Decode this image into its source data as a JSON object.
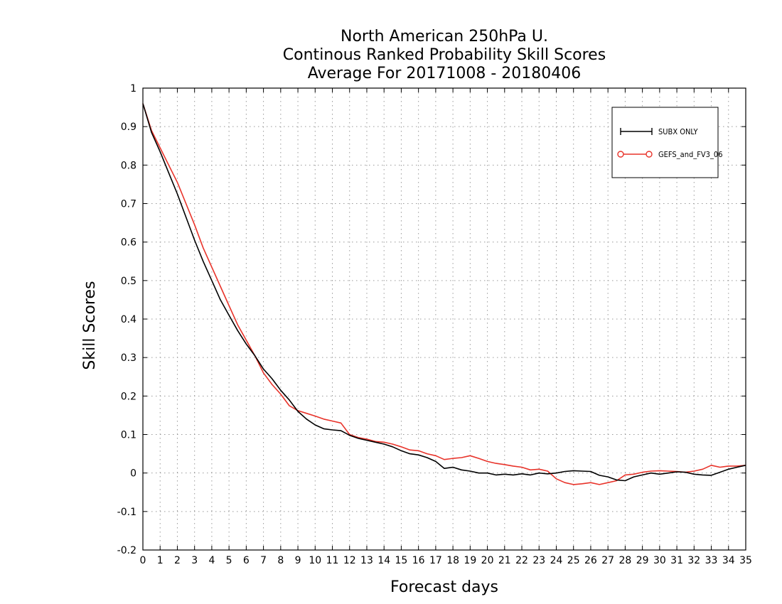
{
  "chart_data": {
    "type": "line",
    "title": [
      "North American 250hPa U.",
      "Continous Ranked Probability Skill Scores",
      "Average For 20171008 - 20180406"
    ],
    "xlabel": "Forecast days",
    "ylabel": "Skill Scores",
    "xlim": [
      0,
      35
    ],
    "ylim": [
      -0.2,
      1
    ],
    "xticks": [
      0,
      1,
      2,
      3,
      4,
      5,
      6,
      7,
      8,
      9,
      10,
      11,
      12,
      13,
      14,
      15,
      16,
      17,
      18,
      19,
      20,
      21,
      22,
      23,
      24,
      25,
      26,
      27,
      28,
      29,
      30,
      31,
      32,
      33,
      34,
      35
    ],
    "yticks": [
      -0.2,
      -0.1,
      0,
      0.1,
      0.2,
      0.3,
      0.4,
      0.5,
      0.6,
      0.7,
      0.8,
      0.9,
      1
    ],
    "grid": true,
    "legend_position": "top-right",
    "x": [
      0,
      0.5,
      1,
      1.5,
      2,
      2.5,
      3,
      3.5,
      4,
      4.5,
      5,
      5.5,
      6,
      6.5,
      7,
      7.5,
      8,
      8.5,
      9,
      9.5,
      10,
      10.5,
      11,
      11.5,
      12,
      12.5,
      13,
      13.5,
      14,
      14.5,
      15,
      15.5,
      16,
      16.5,
      17,
      17.5,
      18,
      18.5,
      19,
      19.5,
      20,
      20.5,
      21,
      21.5,
      22,
      22.5,
      23,
      23.5,
      24,
      24.5,
      25,
      25.5,
      26,
      26.5,
      27,
      27.5,
      28,
      28.5,
      29,
      29.5,
      30,
      30.5,
      31,
      31.5,
      32,
      32.5,
      33,
      33.5,
      34,
      34.5,
      35
    ],
    "series": [
      {
        "name": "SUBX ONLY",
        "color": "#000000",
        "marker": "plus",
        "values": [
          0.96,
          0.885,
          0.835,
          0.78,
          0.725,
          0.665,
          0.605,
          0.55,
          0.5,
          0.45,
          0.41,
          0.37,
          0.335,
          0.305,
          0.27,
          0.245,
          0.215,
          0.19,
          0.16,
          0.14,
          0.125,
          0.115,
          0.112,
          0.11,
          0.098,
          0.09,
          0.085,
          0.08,
          0.075,
          0.068,
          0.058,
          0.05,
          0.047,
          0.04,
          0.03,
          0.012,
          0.015,
          0.008,
          0.005,
          0.0,
          0.0,
          -0.005,
          -0.003,
          -0.005,
          -0.002,
          -0.005,
          0.0,
          -0.002,
          0.0,
          0.004,
          0.006,
          0.005,
          0.004,
          -0.006,
          -0.01,
          -0.018,
          -0.02,
          -0.01,
          -0.005,
          0.0,
          -0.003,
          0.0,
          0.003,
          0.002,
          -0.003,
          -0.005,
          -0.006,
          0.002,
          0.01,
          0.015,
          0.02
        ]
      },
      {
        "name": "GEFS_and_FV3_06",
        "color": "#e8332a",
        "marker": "circle",
        "values": [
          0.96,
          0.89,
          0.845,
          0.8,
          0.755,
          0.7,
          0.645,
          0.585,
          0.535,
          0.485,
          0.435,
          0.385,
          0.345,
          0.305,
          0.26,
          0.23,
          0.205,
          0.175,
          0.162,
          0.155,
          0.148,
          0.14,
          0.135,
          0.13,
          0.1,
          0.092,
          0.088,
          0.082,
          0.08,
          0.075,
          0.068,
          0.06,
          0.058,
          0.05,
          0.045,
          0.035,
          0.038,
          0.04,
          0.045,
          0.038,
          0.03,
          0.025,
          0.022,
          0.018,
          0.015,
          0.008,
          0.01,
          0.005,
          -0.015,
          -0.025,
          -0.03,
          -0.028,
          -0.025,
          -0.03,
          -0.025,
          -0.02,
          -0.005,
          -0.003,
          0.002,
          0.005,
          0.006,
          0.005,
          0.004,
          0.002,
          0.005,
          0.01,
          0.02,
          0.015,
          0.018,
          0.018,
          0.02
        ]
      }
    ]
  }
}
